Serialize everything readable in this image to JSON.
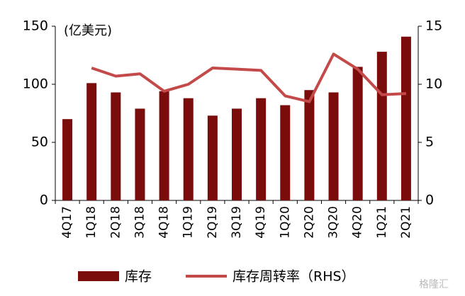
{
  "chart_data": {
    "type": "combo",
    "unit_label": "(亿美元)",
    "categories": [
      "4Q17",
      "1Q18",
      "2Q18",
      "3Q18",
      "4Q18",
      "1Q19",
      "2Q19",
      "3Q19",
      "4Q19",
      "1Q20",
      "2Q20",
      "3Q20",
      "4Q20",
      "1Q21",
      "2Q21"
    ],
    "series": [
      {
        "name": "库存",
        "type": "bar",
        "color": "#7b0c0c",
        "values": [
          70,
          101,
          93,
          79,
          94,
          88,
          73,
          79,
          88,
          82,
          95,
          93,
          115,
          128,
          141
        ]
      },
      {
        "name": "库存周转率（RHS）",
        "type": "line",
        "axis": "y2",
        "color": "#c44a4a",
        "values": [
          null,
          11.4,
          10.7,
          10.9,
          9.4,
          10.0,
          11.4,
          11.3,
          11.2,
          9.0,
          8.5,
          12.6,
          11.3,
          9.1,
          9.2
        ]
      }
    ],
    "ylim": [
      0,
      150
    ],
    "yticks": [
      0,
      50,
      100,
      150
    ],
    "y2lim": [
      0,
      15
    ],
    "y2ticks": [
      0,
      5,
      10,
      15
    ],
    "grid": false,
    "legend": "bottom",
    "watermark": "格隆汇"
  }
}
